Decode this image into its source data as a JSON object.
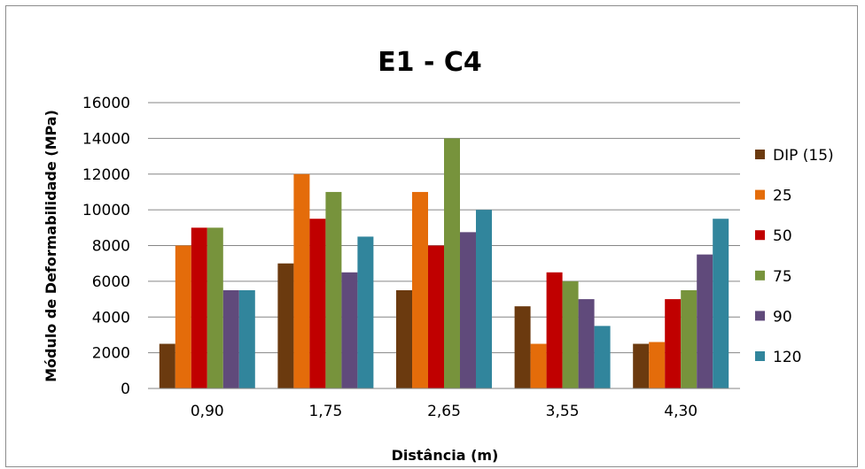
{
  "chart_data": {
    "type": "bar",
    "title": "E1 - C4",
    "xlabel": "Distância (m)",
    "ylabel": "Módulo de Deformabilidade (MPa)",
    "ylim": [
      0,
      16000
    ],
    "yticks": [
      0,
      2000,
      4000,
      6000,
      8000,
      10000,
      12000,
      14000,
      16000
    ],
    "grid": true,
    "legend_position": "right",
    "categories": [
      "0,90",
      "1,75",
      "2,65",
      "3,55",
      "4,30"
    ],
    "series": [
      {
        "name": "DIP (15)",
        "color": "#6B3A0F",
        "values": [
          2500,
          7000,
          5500,
          4600,
          2500
        ]
      },
      {
        "name": "25",
        "color": "#E46C0A",
        "values": [
          8000,
          12000,
          11000,
          2500,
          2600
        ]
      },
      {
        "name": "50",
        "color": "#C00000",
        "values": [
          9000,
          9500,
          8000,
          6500,
          5000
        ]
      },
      {
        "name": "75",
        "color": "#77933C",
        "values": [
          9000,
          11000,
          14000,
          6000,
          5500
        ]
      },
      {
        "name": "90",
        "color": "#604A7B",
        "values": [
          5500,
          6500,
          8750,
          5000,
          7500
        ]
      },
      {
        "name": "120",
        "color": "#31859C",
        "values": [
          5500,
          8500,
          10000,
          3500,
          9500
        ]
      }
    ]
  }
}
